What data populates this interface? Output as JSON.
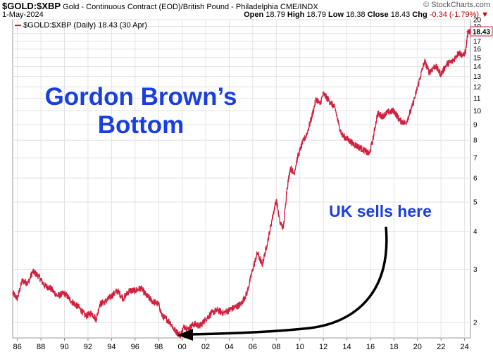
{
  "header": {
    "symbol": "$GOLD:$XBP",
    "description": "Gold - Continuous Contract (EOD)/British Pound - Philadelphia",
    "exchange": "CME/INDX",
    "date": "1-May-2024",
    "brand": "© StockCharts.com",
    "ohlc": {
      "open_label": "Open",
      "open": "18.79",
      "high_label": "High",
      "high": "18.79",
      "low_label": "Low",
      "low": "18.38",
      "close_label": "Close",
      "close": "18.43",
      "chg_label": "Chg",
      "chg": "-0.34 (-1.79%)"
    }
  },
  "colors": {
    "line": "#d0213f",
    "annotation": "#1a3fe0",
    "grid": "#e2e2e2",
    "arrow": "#000000"
  },
  "chart_data": {
    "type": "line",
    "title": "$GOLD:$XBP",
    "legend": "$GOLD:$XBP (Daily) 18.43 (30 Apr)",
    "last_value_label": "18.43",
    "y_scale": "log",
    "ylim": [
      1.78,
      20
    ],
    "xlim": [
      1985.6,
      2024.5
    ],
    "y_ticks": [
      2,
      3,
      4,
      5,
      6,
      7,
      8,
      9,
      10,
      11,
      12,
      13,
      14,
      15,
      16,
      17,
      18,
      19,
      20
    ],
    "y_tick_labels": [
      "2",
      "3",
      "4",
      "5",
      "6",
      "7",
      "8",
      "9",
      "10",
      "11",
      "12",
      "13",
      "14",
      "15",
      "16",
      "17",
      "18",
      "19",
      "20"
    ],
    "x_ticks": [
      1986,
      1988,
      1990,
      1992,
      1994,
      1996,
      1998,
      2000,
      2002,
      2004,
      2006,
      2008,
      2010,
      2012,
      2014,
      2016,
      2018,
      2020,
      2022,
      2024
    ],
    "x_tick_labels": [
      "86",
      "88",
      "90",
      "92",
      "94",
      "96",
      "98",
      "00",
      "02",
      "04",
      "06",
      "08",
      "10",
      "12",
      "14",
      "16",
      "18",
      "20",
      "22",
      "24"
    ],
    "series": [
      {
        "name": "$GOLD:$XBP (Daily)",
        "x": [
          1985.6,
          1986.0,
          1986.4,
          1986.9,
          1987.3,
          1987.8,
          1988.3,
          1988.8,
          1989.4,
          1990.0,
          1990.6,
          1991.2,
          1991.8,
          1992.3,
          1992.7,
          1993.0,
          1993.5,
          1994.0,
          1994.5,
          1995.0,
          1995.5,
          1996.0,
          1996.5,
          1997.0,
          1997.5,
          1998.0,
          1998.3,
          1998.7,
          1999.0,
          1999.3,
          1999.6,
          1999.85,
          2000.2,
          2000.5,
          2001.0,
          2001.5,
          2002.0,
          2002.5,
          2003.0,
          2003.5,
          2004.0,
          2004.5,
          2005.0,
          2005.5,
          2006.0,
          2006.4,
          2006.8,
          2007.2,
          2007.6,
          2008.0,
          2008.3,
          2008.6,
          2008.9,
          2009.2,
          2009.5,
          2009.8,
          2010.2,
          2010.6,
          2011.0,
          2011.4,
          2011.7,
          2012.0,
          2012.5,
          2013.0,
          2013.3,
          2013.6,
          2014.0,
          2014.5,
          2015.0,
          2015.5,
          2015.9,
          2016.2,
          2016.6,
          2017.0,
          2017.5,
          2018.0,
          2018.5,
          2019.0,
          2019.5,
          2019.8,
          2020.2,
          2020.6,
          2021.0,
          2021.5,
          2022.0,
          2022.5,
          2023.0,
          2023.5,
          2023.9,
          2024.1,
          2024.2,
          2024.33
        ],
        "values": [
          2.5,
          2.4,
          2.75,
          2.7,
          2.95,
          2.85,
          2.65,
          2.6,
          2.45,
          2.5,
          2.35,
          2.25,
          2.1,
          2.15,
          2.05,
          2.3,
          2.35,
          2.45,
          2.55,
          2.4,
          2.55,
          2.55,
          2.6,
          2.45,
          2.35,
          2.3,
          2.1,
          2.05,
          2.0,
          1.9,
          1.85,
          1.82,
          1.95,
          1.9,
          1.98,
          1.95,
          2.05,
          2.15,
          2.2,
          2.15,
          2.2,
          2.25,
          2.3,
          2.5,
          3.0,
          3.4,
          3.1,
          3.6,
          4.3,
          5.1,
          4.3,
          4.1,
          5.5,
          6.5,
          6.2,
          7.0,
          7.8,
          8.4,
          9.5,
          11.0,
          10.5,
          11.4,
          10.8,
          10.2,
          9.0,
          8.3,
          8.1,
          7.8,
          7.6,
          7.4,
          7.2,
          8.0,
          9.8,
          9.6,
          9.9,
          10.0,
          9.3,
          9.1,
          10.2,
          11.2,
          12.8,
          14.6,
          13.4,
          14.1,
          13.2,
          14.3,
          14.6,
          15.6,
          15.2,
          15.8,
          17.2,
          18.43
        ]
      }
    ],
    "annotations": {
      "title_line1": "Gordon Brown’s",
      "title_line2": "Bottom",
      "arrow_label": "UK sells here"
    }
  }
}
